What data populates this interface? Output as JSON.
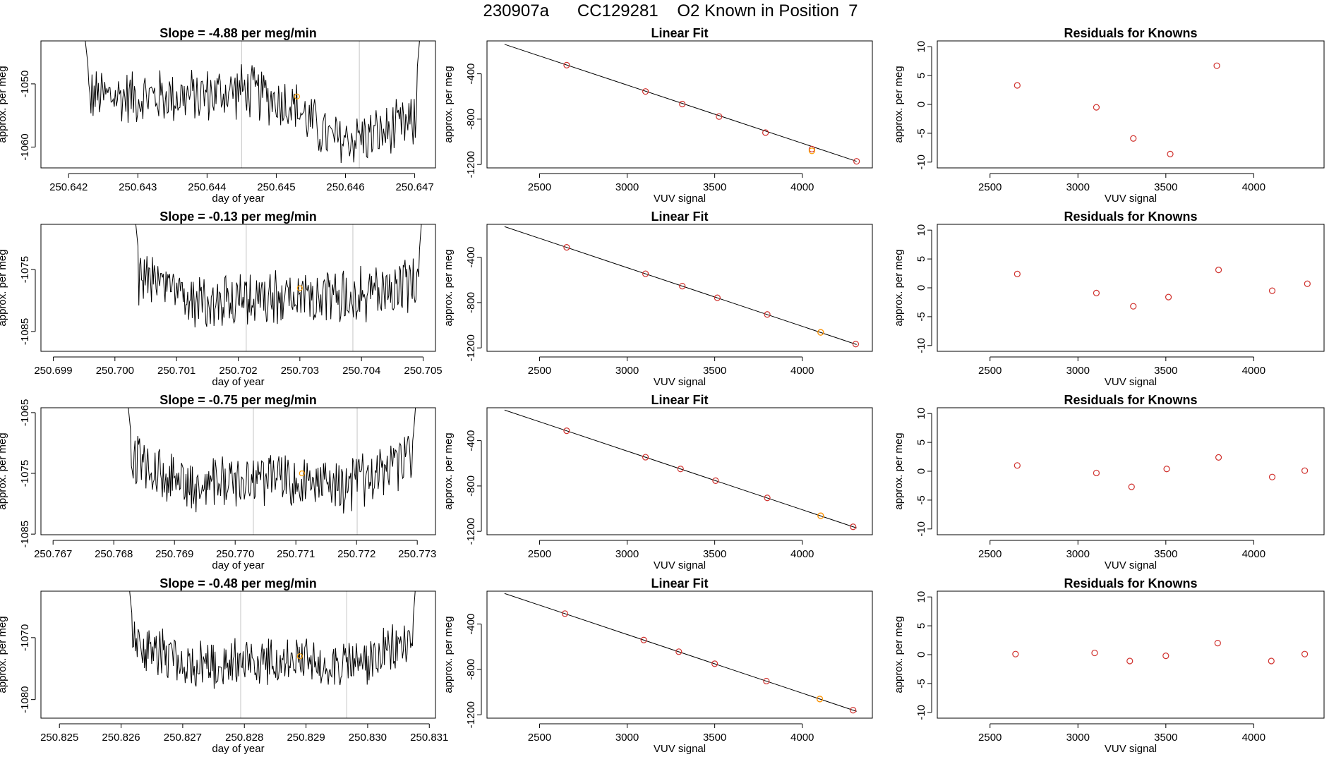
{
  "page_title": "230907a      CC129281    O2 Known in Position  7",
  "colors": {
    "trace": "#000000",
    "axis": "#000000",
    "vline": "#cfcfcf",
    "point": "#d0312d",
    "highlight": "#ff9f00"
  },
  "chart_data": [
    {
      "type": "line",
      "row": 0,
      "panel": "time_series",
      "title": "Slope =  -4.88  per meg/min",
      "xlabel": "day of year",
      "ylabel": "approx. per meg",
      "xlim": [
        250.6416,
        250.6473
      ],
      "ylim": [
        -1063.3,
        -1043.2
      ],
      "x_ticks": [
        250.642,
        250.643,
        250.644,
        250.645,
        250.646,
        250.647
      ],
      "x_tick_labels": [
        "250.642",
        "250.643",
        "250.644",
        "250.645",
        "250.646",
        "250.647"
      ],
      "y_ticks": [
        -1050,
        -1060
      ],
      "y_tick_labels": [
        "-1050",
        "-1060"
      ],
      "data_x_range": [
        250.6422,
        250.6471
      ],
      "trace_segments": [
        [
          250.6422,
          -1052
        ],
        [
          250.6438,
          -1052
        ],
        [
          250.6445,
          -1051
        ],
        [
          250.6452,
          -1053
        ],
        [
          250.6458,
          -1059
        ],
        [
          250.6465,
          -1058
        ],
        [
          250.6471,
          -1056
        ]
      ],
      "trace_amplitude": 5,
      "vlines": [
        250.6445,
        250.6462
      ],
      "highlight_point": [
        250.6453,
        -1052
      ]
    },
    {
      "type": "line",
      "row": 0,
      "panel": "fit",
      "title": "Linear Fit",
      "xlabel": "VUV signal",
      "ylabel": "approx. per meg",
      "xlim": [
        2200,
        4400
      ],
      "ylim": [
        -1230,
        -110
      ],
      "x_ticks": [
        2500,
        3000,
        3500,
        4000
      ],
      "x_tick_labels": [
        "2500",
        "3000",
        "3500",
        "4000"
      ],
      "y_ticks": [
        -400,
        -800,
        -1200
      ],
      "y_tick_labels": [
        "-400",
        "-800",
        "-1200"
      ],
      "line": [
        [
          2300,
          -140
        ],
        [
          4310,
          -1172
        ]
      ],
      "points_x": [
        2655,
        3105,
        3315,
        3525,
        3790,
        4055,
        4310
      ],
      "points_y": [
        -324,
        -556,
        -667,
        -777,
        -919,
        -1064,
        -1172
      ],
      "highlight_points_x": [
        4055
      ],
      "highlight_points_y": [
        -1080
      ]
    },
    {
      "type": "scatter",
      "row": 0,
      "panel": "residuals",
      "title": "Residuals for Knowns",
      "xlabel": "VUV signal",
      "ylabel": "approx. per meg",
      "xlim": [
        2200,
        4400
      ],
      "ylim": [
        -11,
        11
      ],
      "x_ticks": [
        2500,
        3000,
        3500,
        4000
      ],
      "x_tick_labels": [
        "2500",
        "3000",
        "3500",
        "4000"
      ],
      "y_ticks": [
        10,
        5,
        0,
        -5,
        -10
      ],
      "y_tick_labels": [
        "10",
        "5",
        "0",
        "-5",
        "-10"
      ],
      "x": [
        2655,
        3105,
        3315,
        3525,
        3790
      ],
      "y": [
        3.3,
        -0.5,
        -5.9,
        -8.6,
        6.7
      ]
    },
    {
      "type": "line",
      "row": 1,
      "panel": "time_series",
      "title": "Slope =  -0.13  per meg/min",
      "xlabel": "day of year",
      "ylabel": "approx. per meg",
      "xlim": [
        250.6988,
        250.7052
      ],
      "ylim": [
        -1088.2,
        -1067.7
      ],
      "x_ticks": [
        250.699,
        250.7,
        250.701,
        250.702,
        250.703,
        250.704,
        250.705
      ],
      "x_tick_labels": [
        "250.699",
        "250.700",
        "250.701",
        "250.702",
        "250.703",
        "250.704",
        "250.705"
      ],
      "y_ticks": [
        -1075,
        -1085
      ],
      "y_tick_labels": [
        "-1075",
        "-1085"
      ],
      "data_x_range": [
        250.7003,
        250.705
      ],
      "trace_segments": [
        [
          250.7003,
          -1076
        ],
        [
          250.7012,
          -1080
        ],
        [
          250.7025,
          -1080
        ],
        [
          250.704,
          -1079
        ],
        [
          250.705,
          -1077
        ]
      ],
      "trace_amplitude": 5,
      "vlines": [
        250.70213,
        250.70386
      ],
      "highlight_point": [
        250.703,
        -1078
      ]
    },
    {
      "type": "line",
      "row": 1,
      "panel": "fit",
      "title": "Linear Fit",
      "xlabel": "VUV signal",
      "ylabel": "approx. per meg",
      "xlim": [
        2200,
        4400
      ],
      "ylim": [
        -1230,
        -110
      ],
      "x_ticks": [
        2500,
        3000,
        3500,
        4000
      ],
      "x_tick_labels": [
        "2500",
        "3000",
        "3500",
        "4000"
      ],
      "y_ticks": [
        -400,
        -800,
        -1200
      ],
      "y_tick_labels": [
        "-400",
        "-800",
        "-1200"
      ],
      "line": [
        [
          2300,
          -130
        ],
        [
          4310,
          -1170
        ]
      ],
      "points_x": [
        2655,
        3105,
        3315,
        3515,
        3800,
        4105,
        4305
      ],
      "points_y": [
        -313,
        -546,
        -655,
        -758,
        -905,
        -1063,
        -1166
      ],
      "highlight_points_x": [
        4105
      ],
      "highlight_points_y": [
        -1063
      ]
    },
    {
      "type": "scatter",
      "row": 1,
      "panel": "residuals",
      "title": "Residuals for Knowns",
      "xlabel": "VUV signal",
      "ylabel": "approx. per meg",
      "xlim": [
        2200,
        4400
      ],
      "ylim": [
        -11,
        11
      ],
      "x_ticks": [
        2500,
        3000,
        3500,
        4000
      ],
      "x_tick_labels": [
        "2500",
        "3000",
        "3500",
        "4000"
      ],
      "y_ticks": [
        10,
        5,
        0,
        -5,
        -10
      ],
      "y_tick_labels": [
        "10",
        "5",
        "0",
        "-5",
        "-10"
      ],
      "x": [
        2655,
        3105,
        3315,
        3515,
        3800,
        4105,
        4305
      ],
      "y": [
        2.4,
        -0.9,
        -3.2,
        -1.6,
        3.1,
        -0.5,
        0.7
      ]
    },
    {
      "type": "line",
      "row": 2,
      "panel": "time_series",
      "title": "Slope =  -0.75  per meg/min",
      "xlabel": "day of year",
      "ylabel": "approx. per meg",
      "xlim": [
        250.7668,
        250.7733
      ],
      "ylim": [
        -1085.1,
        -1064.2
      ],
      "x_ticks": [
        250.767,
        250.768,
        250.769,
        250.77,
        250.771,
        250.772,
        250.773
      ],
      "x_tick_labels": [
        "250.767",
        "250.768",
        "250.769",
        "250.770",
        "250.771",
        "250.772",
        "250.773"
      ],
      "y_ticks": [
        -1065,
        -1075,
        -1085
      ],
      "y_tick_labels": [
        "-1065",
        "-1075",
        "-1085"
      ],
      "data_x_range": [
        250.7682,
        250.773
      ],
      "trace_segments": [
        [
          250.7682,
          -1072
        ],
        [
          250.7692,
          -1077
        ],
        [
          250.7705,
          -1076
        ],
        [
          250.7718,
          -1077
        ],
        [
          250.773,
          -1072
        ]
      ],
      "trace_amplitude": 5,
      "vlines": [
        250.7703,
        250.77201
      ],
      "highlight_point": [
        250.7711,
        -1075
      ]
    },
    {
      "type": "line",
      "row": 2,
      "panel": "fit",
      "title": "Linear Fit",
      "xlabel": "VUV signal",
      "ylabel": "approx. per meg",
      "xlim": [
        2200,
        4400
      ],
      "ylim": [
        -1230,
        -110
      ],
      "x_ticks": [
        2500,
        3000,
        3500,
        4000
      ],
      "x_tick_labels": [
        "2500",
        "3000",
        "3500",
        "4000"
      ],
      "y_ticks": [
        -400,
        -800,
        -1200
      ],
      "y_tick_labels": [
        "-400",
        "-800",
        "-1200"
      ],
      "line": [
        [
          2300,
          -130
        ],
        [
          4310,
          -1170
        ]
      ],
      "points_x": [
        2655,
        3105,
        3305,
        3505,
        3800,
        4105,
        4290
      ],
      "points_y": [
        -313,
        -546,
        -650,
        -753,
        -905,
        -1063,
        -1160
      ],
      "highlight_points_x": [
        4105
      ],
      "highlight_points_y": [
        -1063
      ]
    },
    {
      "type": "scatter",
      "row": 2,
      "panel": "residuals",
      "title": "Residuals for Knowns",
      "xlabel": "VUV signal",
      "ylabel": "approx. per meg",
      "xlim": [
        2200,
        4400
      ],
      "ylim": [
        -11,
        11
      ],
      "x_ticks": [
        2500,
        3000,
        3500,
        4000
      ],
      "x_tick_labels": [
        "2500",
        "3000",
        "3500",
        "4000"
      ],
      "y_ticks": [
        10,
        5,
        0,
        -5,
        -10
      ],
      "y_tick_labels": [
        "10",
        "5",
        "0",
        "-5",
        "-10"
      ],
      "x": [
        2655,
        3105,
        3305,
        3505,
        3800,
        4105,
        4290
      ],
      "y": [
        1.0,
        -0.3,
        -2.7,
        0.4,
        2.4,
        -1.0,
        0.1
      ]
    },
    {
      "type": "line",
      "row": 3,
      "panel": "time_series",
      "title": "Slope =  -0.48  per meg/min",
      "xlabel": "day of year",
      "ylabel": "approx. per meg",
      "xlim": [
        250.8247,
        250.8311
      ],
      "ylim": [
        -1083.0,
        -1062.5
      ],
      "x_ticks": [
        250.825,
        250.826,
        250.827,
        250.828,
        250.829,
        250.83,
        250.831
      ],
      "x_tick_labels": [
        "250.825",
        "250.826",
        "250.827",
        "250.828",
        "250.829",
        "250.830",
        "250.831"
      ],
      "y_ticks": [
        -1070,
        -1080
      ],
      "y_tick_labels": [
        "-1070",
        "-1080"
      ],
      "data_x_range": [
        250.8261,
        250.8308
      ],
      "trace_segments": [
        [
          250.8261,
          -1070
        ],
        [
          250.827,
          -1074
        ],
        [
          250.8285,
          -1074
        ],
        [
          250.83,
          -1074
        ],
        [
          250.8308,
          -1070
        ]
      ],
      "trace_amplitude": 4.5,
      "vlines": [
        250.82794,
        250.82966
      ],
      "highlight_point": [
        250.8289,
        -1073
      ]
    },
    {
      "type": "line",
      "row": 3,
      "panel": "fit",
      "title": "Linear Fit",
      "xlabel": "VUV signal",
      "ylabel": "approx. per meg",
      "xlim": [
        2200,
        4400
      ],
      "ylim": [
        -1230,
        -110
      ],
      "x_ticks": [
        2500,
        3000,
        3500,
        4000
      ],
      "x_tick_labels": [
        "2500",
        "3000",
        "3500",
        "4000"
      ],
      "y_ticks": [
        -400,
        -800,
        -1200
      ],
      "y_tick_labels": [
        "-400",
        "-800",
        "-1200"
      ],
      "line": [
        [
          2300,
          -130
        ],
        [
          4310,
          -1170
        ]
      ],
      "points_x": [
        2645,
        3095,
        3295,
        3500,
        3795,
        4100,
        4290
      ],
      "points_y": [
        -308,
        -541,
        -644,
        -750,
        -903,
        -1061,
        -1160
      ],
      "highlight_points_x": [
        4100
      ],
      "highlight_points_y": [
        -1061
      ]
    },
    {
      "type": "scatter",
      "row": 3,
      "panel": "residuals",
      "title": "Residuals for Knowns",
      "xlabel": "VUV signal",
      "ylabel": "approx. per meg",
      "xlim": [
        2200,
        4400
      ],
      "ylim": [
        -11,
        11
      ],
      "x_ticks": [
        2500,
        3000,
        3500,
        4000
      ],
      "x_tick_labels": [
        "2500",
        "3000",
        "3500",
        "4000"
      ],
      "y_ticks": [
        10,
        5,
        0,
        -5,
        -10
      ],
      "y_tick_labels": [
        "10",
        "5",
        "0",
        "-5",
        "-10"
      ],
      "x": [
        2645,
        3095,
        3295,
        3500,
        3795,
        4100,
        4290
      ],
      "y": [
        0.1,
        0.3,
        -1.1,
        -0.2,
        2.0,
        -1.1,
        0.1
      ]
    }
  ]
}
